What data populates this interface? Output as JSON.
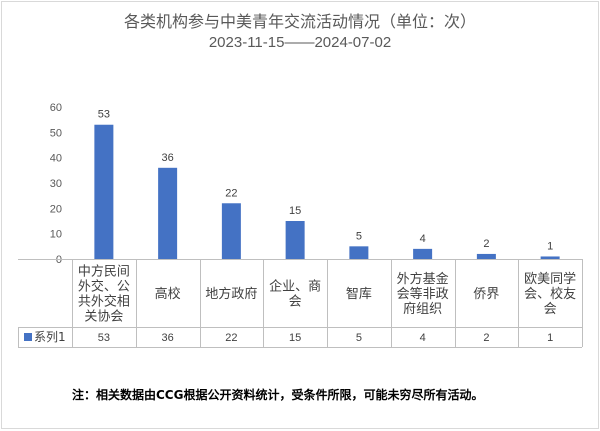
{
  "chart_data": {
    "type": "bar",
    "title": "各类机构参与中美青年交流活动情况（单位：次）",
    "subtitle": "2023-11-15——2024-07-02",
    "categories": [
      [
        "中方民间",
        "外交、公",
        "共外交相",
        "关协会"
      ],
      [
        "高校"
      ],
      [
        "地方政府"
      ],
      [
        "企业、商",
        "会"
      ],
      [
        "智库"
      ],
      [
        "外方基金",
        "会等非政",
        "府组织"
      ],
      [
        "侨界"
      ],
      [
        "欧美同学",
        "会、校友",
        "会"
      ]
    ],
    "series": [
      {
        "name": "系列1",
        "values": [
          53,
          36,
          22,
          15,
          5,
          4,
          2,
          1
        ]
      }
    ],
    "y_ticks": [
      "0",
      "10",
      "20",
      "30",
      "40",
      "50",
      "60"
    ],
    "ylim": [
      0,
      60
    ],
    "grid": false,
    "legend": "data-table",
    "bar_color": "#4472c4"
  },
  "note": "注：相关数据由CCG根据公开资料统计，受条件所限，可能未穷尽所有活动。"
}
